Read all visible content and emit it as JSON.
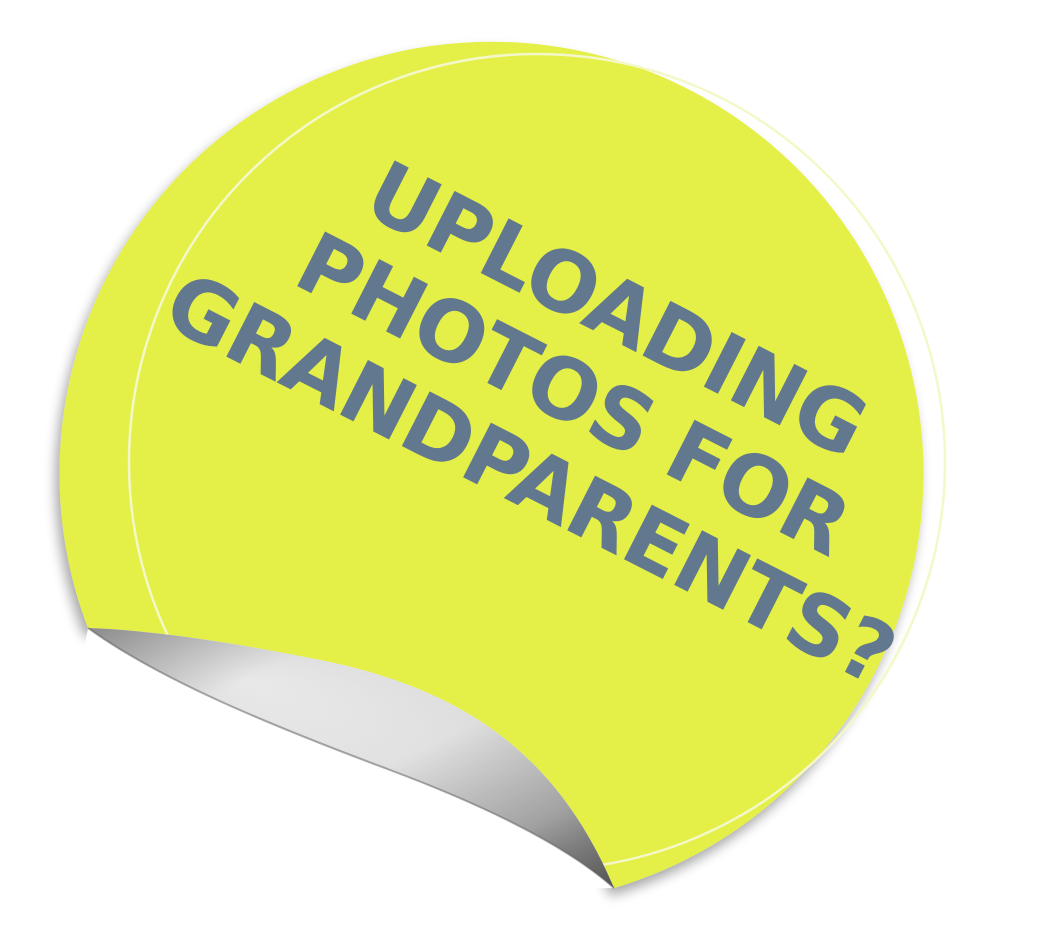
{
  "sticker": {
    "line1": "UPLOADING",
    "line2": "PHOTOS FOR",
    "line3": "GRANDPARENTS?",
    "colors": {
      "sticker_fill": "#e4ef47",
      "text": "#62788e",
      "inner_ring": "#f4f8c8",
      "curl_light": "#f4f4f4",
      "curl_dark": "#8a8a8a"
    }
  }
}
